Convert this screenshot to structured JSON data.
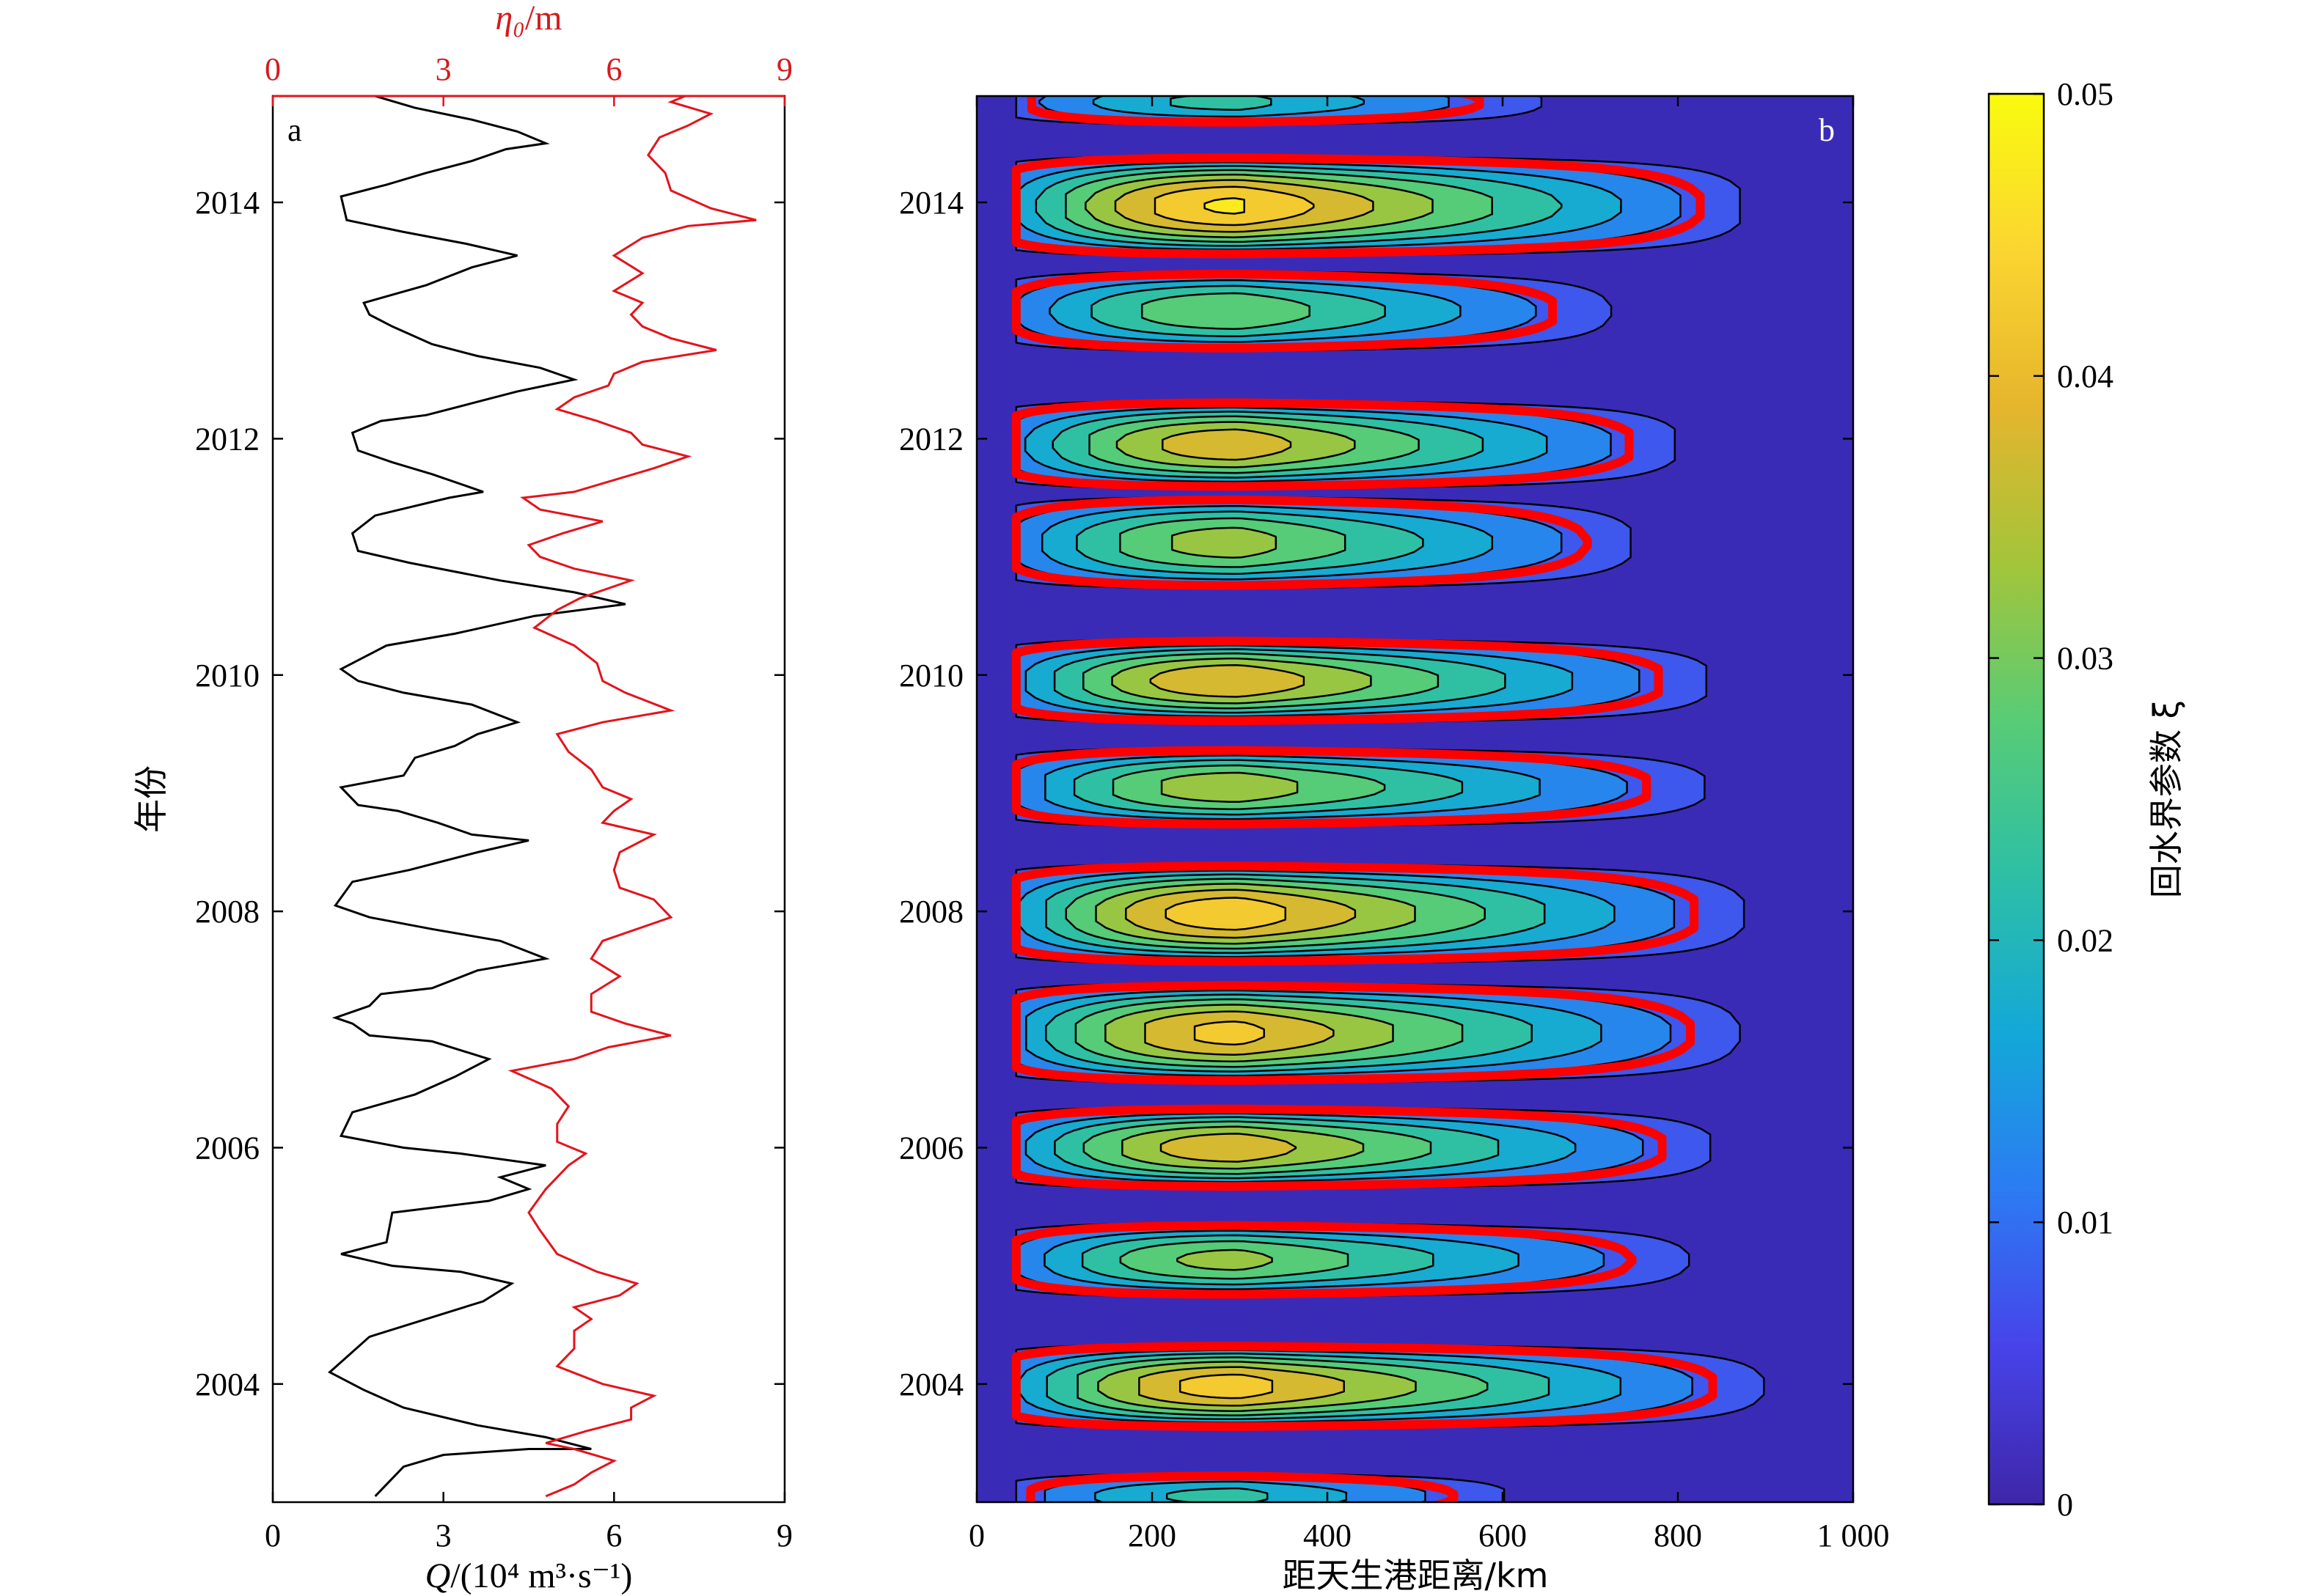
{
  "chart_data": [
    {
      "panel": "a",
      "type": "line",
      "ylabel": "年份",
      "ylim": [
        2003.0,
        2014.9
      ],
      "yticks": [
        2004,
        2006,
        2008,
        2010,
        2012,
        2014
      ],
      "x_bottom": {
        "label_var": "Q",
        "label_unit": "/(10⁴ m³·s⁻¹)",
        "lim": [
          0,
          9
        ],
        "ticks": [
          0,
          3,
          6,
          9
        ]
      },
      "x_top": {
        "label_var": "η₀",
        "label_unit": "/m",
        "lim": [
          0,
          9
        ],
        "ticks": [
          0,
          3,
          6,
          9
        ]
      },
      "series": [
        {
          "axis": "bottom",
          "color": "#000000",
          "points": [
            [
              1.8,
              2003.05
            ],
            [
              2.3,
              2003.3
            ],
            [
              3.0,
              2003.4
            ],
            [
              4.5,
              2003.45
            ],
            [
              5.6,
              2003.45
            ],
            [
              4.8,
              2003.55
            ],
            [
              3.6,
              2003.65
            ],
            [
              2.3,
              2003.8
            ],
            [
              1.6,
              2003.95
            ],
            [
              1.0,
              2004.1
            ],
            [
              1.7,
              2004.4
            ],
            [
              2.7,
              2004.55
            ],
            [
              3.7,
              2004.7
            ],
            [
              4.2,
              2004.85
            ],
            [
              3.3,
              2004.95
            ],
            [
              2.1,
              2005.0
            ],
            [
              1.2,
              2005.1
            ],
            [
              2.0,
              2005.2
            ],
            [
              2.1,
              2005.45
            ],
            [
              3.8,
              2005.55
            ],
            [
              4.5,
              2005.65
            ],
            [
              4.0,
              2005.75
            ],
            [
              4.8,
              2005.85
            ],
            [
              3.3,
              2005.95
            ],
            [
              2.3,
              2006.0
            ],
            [
              1.2,
              2006.1
            ],
            [
              1.4,
              2006.3
            ],
            [
              2.5,
              2006.45
            ],
            [
              3.2,
              2006.6
            ],
            [
              3.8,
              2006.75
            ],
            [
              2.8,
              2006.9
            ],
            [
              1.7,
              2006.95
            ],
            [
              1.4,
              2007.05
            ],
            [
              1.1,
              2007.1
            ],
            [
              1.7,
              2007.2
            ],
            [
              1.9,
              2007.3
            ],
            [
              2.8,
              2007.35
            ],
            [
              3.6,
              2007.5
            ],
            [
              4.8,
              2007.6
            ],
            [
              4.0,
              2007.75
            ],
            [
              2.8,
              2007.85
            ],
            [
              1.7,
              2007.95
            ],
            [
              1.1,
              2008.05
            ],
            [
              1.4,
              2008.25
            ],
            [
              2.4,
              2008.35
            ],
            [
              3.6,
              2008.5
            ],
            [
              4.5,
              2008.6
            ],
            [
              3.5,
              2008.65
            ],
            [
              2.9,
              2008.75
            ],
            [
              2.2,
              2008.85
            ],
            [
              1.5,
              2008.9
            ],
            [
              1.2,
              2009.05
            ],
            [
              2.3,
              2009.15
            ],
            [
              2.5,
              2009.3
            ],
            [
              3.2,
              2009.4
            ],
            [
              3.6,
              2009.5
            ],
            [
              4.3,
              2009.6
            ],
            [
              3.5,
              2009.75
            ],
            [
              2.3,
              2009.85
            ],
            [
              1.5,
              2009.95
            ],
            [
              1.2,
              2010.05
            ],
            [
              1.6,
              2010.15
            ],
            [
              2.0,
              2010.25
            ],
            [
              3.2,
              2010.35
            ],
            [
              4.6,
              2010.5
            ],
            [
              6.2,
              2010.6
            ],
            [
              5.3,
              2010.7
            ],
            [
              4.0,
              2010.8
            ],
            [
              2.4,
              2010.95
            ],
            [
              1.5,
              2011.05
            ],
            [
              1.4,
              2011.2
            ],
            [
              1.8,
              2011.35
            ],
            [
              3.1,
              2011.5
            ],
            [
              3.7,
              2011.55
            ],
            [
              2.8,
              2011.7
            ],
            [
              2.1,
              2011.8
            ],
            [
              1.5,
              2011.9
            ],
            [
              1.4,
              2012.05
            ],
            [
              1.9,
              2012.15
            ],
            [
              2.7,
              2012.2
            ],
            [
              3.5,
              2012.3
            ],
            [
              4.3,
              2012.4
            ],
            [
              5.3,
              2012.5
            ],
            [
              4.7,
              2012.6
            ],
            [
              3.6,
              2012.7
            ],
            [
              2.8,
              2012.8
            ],
            [
              2.1,
              2012.95
            ],
            [
              1.7,
              2013.05
            ],
            [
              1.6,
              2013.15
            ],
            [
              2.7,
              2013.3
            ],
            [
              3.5,
              2013.45
            ],
            [
              4.3,
              2013.55
            ],
            [
              3.4,
              2013.65
            ],
            [
              2.3,
              2013.75
            ],
            [
              1.3,
              2013.85
            ],
            [
              1.2,
              2014.05
            ],
            [
              2.0,
              2014.15
            ],
            [
              2.7,
              2014.25
            ],
            [
              3.5,
              2014.35
            ],
            [
              4.1,
              2014.45
            ],
            [
              4.8,
              2014.5
            ],
            [
              4.3,
              2014.6
            ],
            [
              3.5,
              2014.7
            ],
            [
              2.5,
              2014.8
            ],
            [
              1.8,
              2014.9
            ]
          ]
        },
        {
          "axis": "top",
          "color": "#d7191c",
          "points": [
            [
              4.8,
              2003.05
            ],
            [
              5.3,
              2003.15
            ],
            [
              5.6,
              2003.25
            ],
            [
              6.0,
              2003.35
            ],
            [
              5.3,
              2003.45
            ],
            [
              4.8,
              2003.5
            ],
            [
              5.5,
              2003.6
            ],
            [
              6.3,
              2003.7
            ],
            [
              6.3,
              2003.8
            ],
            [
              6.7,
              2003.9
            ],
            [
              5.8,
              2004.0
            ],
            [
              5.0,
              2004.15
            ],
            [
              5.3,
              2004.3
            ],
            [
              5.3,
              2004.45
            ],
            [
              5.6,
              2004.55
            ],
            [
              5.3,
              2004.65
            ],
            [
              6.1,
              2004.75
            ],
            [
              6.4,
              2004.85
            ],
            [
              5.7,
              2004.95
            ],
            [
              5.0,
              2005.1
            ],
            [
              4.7,
              2005.3
            ],
            [
              4.5,
              2005.45
            ],
            [
              4.8,
              2005.65
            ],
            [
              5.2,
              2005.85
            ],
            [
              5.5,
              2005.95
            ],
            [
              5.0,
              2006.05
            ],
            [
              5.0,
              2006.2
            ],
            [
              5.2,
              2006.35
            ],
            [
              4.9,
              2006.5
            ],
            [
              4.2,
              2006.65
            ],
            [
              5.3,
              2006.75
            ],
            [
              5.9,
              2006.85
            ],
            [
              7.0,
              2006.95
            ],
            [
              6.2,
              2007.05
            ],
            [
              5.6,
              2007.15
            ],
            [
              5.6,
              2007.3
            ],
            [
              6.1,
              2007.45
            ],
            [
              5.6,
              2007.6
            ],
            [
              5.8,
              2007.75
            ],
            [
              6.4,
              2007.85
            ],
            [
              7.0,
              2007.95
            ],
            [
              6.7,
              2008.1
            ],
            [
              6.1,
              2008.2
            ],
            [
              6.0,
              2008.35
            ],
            [
              6.1,
              2008.5
            ],
            [
              6.7,
              2008.65
            ],
            [
              5.8,
              2008.75
            ],
            [
              6.0,
              2008.85
            ],
            [
              6.3,
              2008.95
            ],
            [
              5.8,
              2009.05
            ],
            [
              5.6,
              2009.2
            ],
            [
              5.2,
              2009.35
            ],
            [
              5.0,
              2009.5
            ],
            [
              5.8,
              2009.6
            ],
            [
              7.0,
              2009.7
            ],
            [
              6.2,
              2009.85
            ],
            [
              5.8,
              2009.95
            ],
            [
              5.7,
              2010.1
            ],
            [
              5.3,
              2010.25
            ],
            [
              4.6,
              2010.4
            ],
            [
              5.0,
              2010.55
            ],
            [
              5.4,
              2010.65
            ],
            [
              6.3,
              2010.8
            ],
            [
              5.3,
              2010.9
            ],
            [
              4.7,
              2011.0
            ],
            [
              4.5,
              2011.1
            ],
            [
              5.1,
              2011.2
            ],
            [
              5.8,
              2011.3
            ],
            [
              4.7,
              2011.4
            ],
            [
              4.4,
              2011.5
            ],
            [
              5.3,
              2011.55
            ],
            [
              6.0,
              2011.65
            ],
            [
              6.7,
              2011.75
            ],
            [
              7.3,
              2011.85
            ],
            [
              6.5,
              2011.95
            ],
            [
              6.3,
              2012.05
            ],
            [
              5.7,
              2012.15
            ],
            [
              5.0,
              2012.25
            ],
            [
              5.3,
              2012.35
            ],
            [
              5.9,
              2012.45
            ],
            [
              6.0,
              2012.55
            ],
            [
              6.5,
              2012.65
            ],
            [
              7.8,
              2012.75
            ],
            [
              7.0,
              2012.85
            ],
            [
              6.5,
              2012.95
            ],
            [
              6.3,
              2013.05
            ],
            [
              6.5,
              2013.15
            ],
            [
              6.0,
              2013.25
            ],
            [
              6.5,
              2013.4
            ],
            [
              6.0,
              2013.55
            ],
            [
              6.5,
              2013.7
            ],
            [
              7.3,
              2013.8
            ],
            [
              8.5,
              2013.85
            ],
            [
              7.7,
              2013.95
            ],
            [
              7.0,
              2014.1
            ],
            [
              6.9,
              2014.25
            ],
            [
              6.6,
              2014.4
            ],
            [
              6.8,
              2014.55
            ],
            [
              7.3,
              2014.65
            ],
            [
              7.7,
              2014.75
            ],
            [
              7.0,
              2014.85
            ],
            [
              7.5,
              2014.95
            ]
          ]
        }
      ]
    },
    {
      "panel": "b",
      "type": "heatmap",
      "xlabel": "距天生港距离/km",
      "xlim": [
        0,
        1000
      ],
      "xticks": [
        0,
        200,
        400,
        600,
        800,
        1000
      ],
      "xtick_labels": [
        "0",
        "200",
        "400",
        "600",
        "800",
        "1 000"
      ],
      "ylim": [
        2003.0,
        2014.9
      ],
      "yticks": [
        2004,
        2006,
        2008,
        2010,
        2012,
        2014
      ],
      "background_color": "#3a2bb6",
      "contour_levels": [
        0.005,
        0.01,
        0.015,
        0.02,
        0.025,
        0.03,
        0.035,
        0.04,
        0.045
      ],
      "critical_contour_color": "#ff0000",
      "tongues": [
        {
          "year": 2003.05,
          "half_width": 0.22,
          "x_tip": 700,
          "peak": 0.022
        },
        {
          "year": 2003.98,
          "half_width": 0.38,
          "x_tip": 980,
          "peak": 0.043
        },
        {
          "year": 2005.05,
          "half_width": 0.34,
          "x_tip": 910,
          "peak": 0.032
        },
        {
          "year": 2006.0,
          "half_width": 0.37,
          "x_tip": 925,
          "peak": 0.039
        },
        {
          "year": 2006.97,
          "half_width": 0.45,
          "x_tip": 950,
          "peak": 0.042
        },
        {
          "year": 2007.98,
          "half_width": 0.45,
          "x_tip": 955,
          "peak": 0.044
        },
        {
          "year": 2009.05,
          "half_width": 0.36,
          "x_tip": 930,
          "peak": 0.034
        },
        {
          "year": 2009.95,
          "half_width": 0.38,
          "x_tip": 920,
          "peak": 0.04
        },
        {
          "year": 2011.12,
          "half_width": 0.42,
          "x_tip": 835,
          "peak": 0.033
        },
        {
          "year": 2011.95,
          "half_width": 0.4,
          "x_tip": 880,
          "peak": 0.039
        },
        {
          "year": 2013.08,
          "half_width": 0.37,
          "x_tip": 810,
          "peak": 0.03
        },
        {
          "year": 2013.97,
          "half_width": 0.45,
          "x_tip": 950,
          "peak": 0.046
        },
        {
          "year": 2014.85,
          "half_width": 0.22,
          "x_tip": 750,
          "peak": 0.022
        }
      ]
    },
    {
      "panel": "colorbar",
      "type": "colorbar",
      "label": "回水界参数 ξ",
      "lim": [
        0,
        0.05
      ],
      "ticks": [
        0,
        0.01,
        0.02,
        0.03,
        0.04,
        0.05
      ],
      "tick_labels": [
        "0",
        "0.01",
        "0.02",
        "0.03",
        "0.04",
        "0.05"
      ],
      "colormap": [
        "#3e26a8",
        "#4743e9",
        "#2c7bf3",
        "#13a8d8",
        "#2dbfa6",
        "#58cc76",
        "#a3c53a",
        "#e5b52d",
        "#fbd531",
        "#f9fb0e"
      ]
    }
  ],
  "text": {
    "panel_a_letter": "a",
    "panel_b_letter": "b"
  }
}
